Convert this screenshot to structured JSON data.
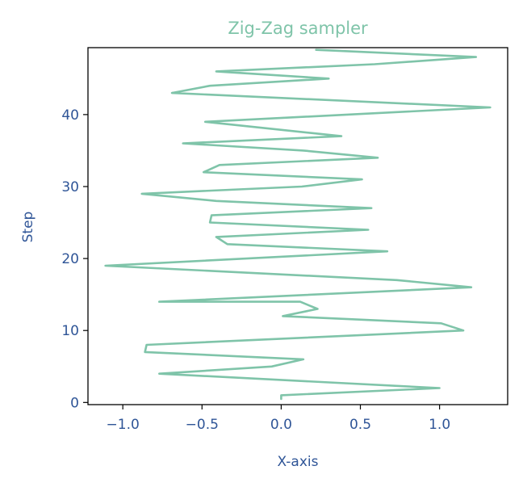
{
  "chart_data": {
    "type": "line",
    "title": "Zig-Zag sampler",
    "xlabel": "X-axis",
    "ylabel": "Step",
    "xlim": [
      -1.22,
      1.43
    ],
    "ylim": [
      -0.3,
      49.3
    ],
    "xticks": [
      -1.0,
      -0.5,
      0.0,
      0.5,
      1.0
    ],
    "xtick_labels": [
      "−1.0",
      "−0.5",
      "0.0",
      "0.5",
      "1.0"
    ],
    "yticks": [
      0,
      10,
      20,
      30,
      40
    ],
    "ytick_labels": [
      "0",
      "10",
      "20",
      "30",
      "40"
    ],
    "grid": false,
    "series": [
      {
        "color": "#7fc4a9",
        "x": [
          0.0,
          0.0,
          1.0,
          -0.77,
          -0.06,
          0.14,
          -0.86,
          -0.85,
          1.15,
          1.01,
          0.01,
          0.23,
          0.12,
          -0.77,
          1.2,
          0.73,
          -1.11,
          0.67,
          -0.34,
          -0.41,
          0.55,
          -0.45,
          -0.44,
          0.57,
          -0.41,
          -0.88,
          0.13,
          0.51,
          -0.49,
          -0.39,
          0.61,
          0.14,
          -0.62,
          0.38,
          -0.48,
          1.32,
          -0.69,
          -0.45,
          0.3,
          -0.41,
          0.59,
          1.23,
          0.22
        ],
        "y": [
          0.5,
          1,
          2,
          4,
          5,
          6,
          7,
          8,
          10,
          11,
          12,
          13,
          14,
          14,
          16,
          17,
          19,
          21,
          22,
          23,
          24,
          25,
          26,
          27,
          28,
          29,
          30,
          31,
          32,
          33,
          34,
          35,
          36,
          37,
          39,
          41,
          43,
          44,
          45,
          46,
          47,
          48,
          49
        ]
      }
    ]
  },
  "colors": {
    "line": "#7fc4a9",
    "title": "#7fc4a9",
    "axis_text": "#2f5597",
    "axes": "#000000"
  }
}
